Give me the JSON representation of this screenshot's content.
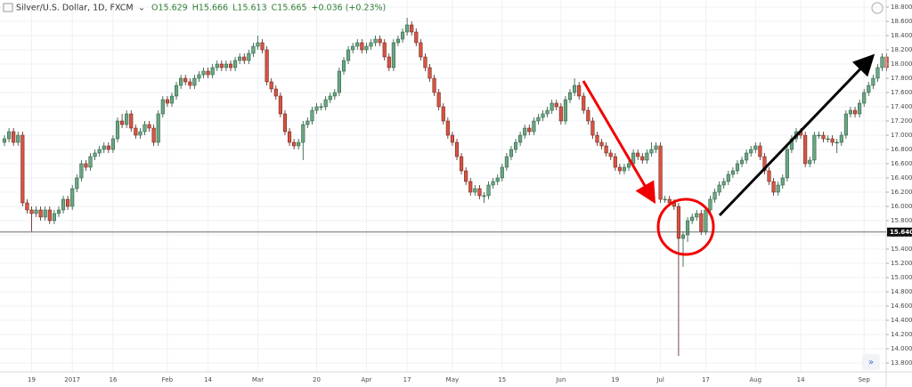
{
  "chart_data": {
    "type": "candlestick",
    "header": {
      "symbol": "Silver/U.S. Dollar, 1D, FXCM",
      "ohlc": [
        "O15.629",
        "H15.666",
        "L15.613",
        "C15.665",
        "+0.036 (+0.23%)"
      ]
    },
    "categories": [
      null,
      null,
      null,
      null,
      null,
      null,
      "19",
      null,
      null,
      null,
      null,
      null,
      null,
      null,
      null,
      "2017",
      null,
      null,
      null,
      null,
      null,
      null,
      null,
      null,
      "16",
      null,
      null,
      null,
      null,
      null,
      null,
      null,
      null,
      null,
      null,
      null,
      "Feb",
      null,
      null,
      null,
      null,
      null,
      null,
      null,
      null,
      "14",
      null,
      null,
      null,
      null,
      null,
      null,
      null,
      null,
      null,
      null,
      "Mar",
      null,
      null,
      null,
      null,
      null,
      null,
      null,
      null,
      null,
      null,
      null,
      null,
      "20",
      null,
      null,
      null,
      null,
      null,
      null,
      null,
      null,
      null,
      null,
      "Apr",
      null,
      null,
      null,
      null,
      null,
      null,
      null,
      null,
      "17",
      null,
      null,
      null,
      null,
      null,
      null,
      null,
      null,
      null,
      "May",
      null,
      null,
      null,
      null,
      null,
      null,
      null,
      null,
      null,
      null,
      "15",
      null,
      null,
      null,
      null,
      null,
      null,
      null,
      null,
      null,
      null,
      null,
      null,
      "Jun",
      null,
      null,
      null,
      null,
      null,
      null,
      null,
      null,
      null,
      null,
      null,
      "19",
      null,
      null,
      null,
      null,
      null,
      null,
      null,
      null,
      null,
      "Jul",
      null,
      null,
      null,
      null,
      null,
      null,
      null,
      null,
      null,
      "17",
      null,
      null,
      null,
      null,
      null,
      null,
      null,
      null,
      null,
      null,
      "Aug",
      null,
      null,
      null,
      null,
      null,
      null,
      null,
      null,
      null,
      "14",
      null,
      null,
      null,
      null,
      null,
      null,
      null,
      null,
      null,
      null,
      null,
      null,
      null,
      "Sep",
      null,
      null,
      null,
      null,
      null
    ],
    "open": [
      16.9,
      16.95,
      17.05,
      16.9,
      17.0,
      16.05,
      15.95,
      15.9,
      15.95,
      15.85,
      15.95,
      15.8,
      15.9,
      15.95,
      16.1,
      16.0,
      16.25,
      16.4,
      16.6,
      16.55,
      16.7,
      16.75,
      16.8,
      16.85,
      16.8,
      16.95,
      17.2,
      17.15,
      17.3,
      17.1,
      17.0,
      17.05,
      17.15,
      17.1,
      16.9,
      17.3,
      17.5,
      17.45,
      17.55,
      17.7,
      17.8,
      17.75,
      17.7,
      17.8,
      17.85,
      17.9,
      17.85,
      17.95,
      18.0,
      17.95,
      18.0,
      17.95,
      18.05,
      18.1,
      18.05,
      18.15,
      18.25,
      18.3,
      18.2,
      17.75,
      17.65,
      17.55,
      17.3,
      17.05,
      16.9,
      16.85,
      16.9,
      17.15,
      17.2,
      17.35,
      17.4,
      17.4,
      17.5,
      17.55,
      17.6,
      17.9,
      18.05,
      18.2,
      18.25,
      18.3,
      18.2,
      18.25,
      18.3,
      18.35,
      18.3,
      18.1,
      17.95,
      18.3,
      18.35,
      18.45,
      18.55,
      18.45,
      18.3,
      18.1,
      17.95,
      17.8,
      17.6,
      17.4,
      17.2,
      17.0,
      16.9,
      16.7,
      16.5,
      16.35,
      16.2,
      16.25,
      16.15,
      16.15,
      16.3,
      16.35,
      16.4,
      16.55,
      16.7,
      16.8,
      16.9,
      17.0,
      17.1,
      17.05,
      17.2,
      17.25,
      17.3,
      17.35,
      17.45,
      17.4,
      17.2,
      17.5,
      17.6,
      17.7,
      17.55,
      17.35,
      17.2,
      17.0,
      16.9,
      16.85,
      16.75,
      16.7,
      16.55,
      16.5,
      16.55,
      16.6,
      16.75,
      16.7,
      16.65,
      16.75,
      16.8,
      16.85,
      16.1,
      16.1,
      16.05,
      16.0,
      15.55,
      15.6,
      15.8,
      15.85,
      15.9,
      15.65,
      15.95,
      16.1,
      16.2,
      16.3,
      16.35,
      16.45,
      16.5,
      16.6,
      16.65,
      16.75,
      16.8,
      16.85,
      16.7,
      16.5,
      16.35,
      16.2,
      16.3,
      16.4,
      16.8,
      16.95,
      17.05,
      17.0,
      16.6,
      16.65,
      17.0,
      17.0,
      16.95,
      16.95,
      16.9,
      16.9,
      17.0,
      17.3,
      17.35,
      17.3,
      17.45,
      17.6,
      17.7,
      17.8,
      17.95,
      18.1
    ],
    "high": [
      17.0,
      17.1,
      17.1,
      17.05,
      17.05,
      16.1,
      16.0,
      16.0,
      16.0,
      16.0,
      16.0,
      15.95,
      16.0,
      16.15,
      16.15,
      16.3,
      16.45,
      16.65,
      16.65,
      16.75,
      16.8,
      16.85,
      16.9,
      16.9,
      17.0,
      17.25,
      17.3,
      17.35,
      17.35,
      17.15,
      17.1,
      17.2,
      17.2,
      17.15,
      17.35,
      17.55,
      17.55,
      17.6,
      17.75,
      17.85,
      17.85,
      17.8,
      17.85,
      17.9,
      17.95,
      17.95,
      18.0,
      18.05,
      18.05,
      18.05,
      18.05,
      18.1,
      18.15,
      18.15,
      18.2,
      18.3,
      18.4,
      18.35,
      18.25,
      17.8,
      17.7,
      17.6,
      17.35,
      17.1,
      16.95,
      16.95,
      17.2,
      17.25,
      17.4,
      17.45,
      17.45,
      17.55,
      17.6,
      17.65,
      17.95,
      18.1,
      18.25,
      18.3,
      18.35,
      18.35,
      18.3,
      18.35,
      18.4,
      18.4,
      18.35,
      18.15,
      18.35,
      18.4,
      18.5,
      18.65,
      18.6,
      18.5,
      18.35,
      18.15,
      18.0,
      17.85,
      17.65,
      17.45,
      17.25,
      17.05,
      16.95,
      16.75,
      16.55,
      16.4,
      16.3,
      16.3,
      16.2,
      16.35,
      16.4,
      16.45,
      16.6,
      16.75,
      16.85,
      16.95,
      17.05,
      17.15,
      17.15,
      17.25,
      17.3,
      17.35,
      17.4,
      17.5,
      17.5,
      17.45,
      17.55,
      17.65,
      17.8,
      17.75,
      17.6,
      17.4,
      17.25,
      17.05,
      16.95,
      16.9,
      16.8,
      16.75,
      16.6,
      16.6,
      16.65,
      16.8,
      16.8,
      16.75,
      16.8,
      16.9,
      16.9,
      16.9,
      16.15,
      16.15,
      16.1,
      16.05,
      15.65,
      15.85,
      15.9,
      15.95,
      15.95,
      16.0,
      16.15,
      16.25,
      16.35,
      16.4,
      16.5,
      16.55,
      16.65,
      16.7,
      16.8,
      16.85,
      16.9,
      16.9,
      16.75,
      16.55,
      16.4,
      16.35,
      16.45,
      16.85,
      17.0,
      17.1,
      17.1,
      17.05,
      16.7,
      17.05,
      17.05,
      17.05,
      17.0,
      17.0,
      16.95,
      17.05,
      17.35,
      17.4,
      17.4,
      17.5,
      17.65,
      17.75,
      17.85,
      18.0,
      18.15,
      18.15
    ],
    "low": [
      16.85,
      16.9,
      16.85,
      16.85,
      16.0,
      15.9,
      15.65,
      15.85,
      15.8,
      15.8,
      15.75,
      15.75,
      15.85,
      15.9,
      15.95,
      15.95,
      16.2,
      16.35,
      16.5,
      16.5,
      16.65,
      16.7,
      16.75,
      16.75,
      16.75,
      16.9,
      17.1,
      17.1,
      17.05,
      16.95,
      16.95,
      17.0,
      17.05,
      16.85,
      16.85,
      17.25,
      17.4,
      17.4,
      17.5,
      17.65,
      17.7,
      17.65,
      17.65,
      17.75,
      17.8,
      17.8,
      17.8,
      17.9,
      17.9,
      17.9,
      17.9,
      17.9,
      18.0,
      18.0,
      18.0,
      18.1,
      18.2,
      18.15,
      17.7,
      17.6,
      17.5,
      17.25,
      17.0,
      16.85,
      16.8,
      16.8,
      16.65,
      17.1,
      17.15,
      17.3,
      17.35,
      17.35,
      17.45,
      17.5,
      17.55,
      17.85,
      18.0,
      18.15,
      18.2,
      18.15,
      18.15,
      18.2,
      18.25,
      18.25,
      18.05,
      17.9,
      17.9,
      18.25,
      18.3,
      18.4,
      18.4,
      18.25,
      18.05,
      17.9,
      17.75,
      17.55,
      17.35,
      17.15,
      16.95,
      16.85,
      16.65,
      16.45,
      16.3,
      16.15,
      16.15,
      16.1,
      16.05,
      16.1,
      16.25,
      16.3,
      16.35,
      16.5,
      16.65,
      16.75,
      16.85,
      16.95,
      17.0,
      17.0,
      17.15,
      17.2,
      17.25,
      17.3,
      17.35,
      17.15,
      17.15,
      17.45,
      17.55,
      17.5,
      17.3,
      17.15,
      16.95,
      16.85,
      16.8,
      16.7,
      16.65,
      16.5,
      16.45,
      16.45,
      16.5,
      16.55,
      16.65,
      16.6,
      16.6,
      16.7,
      16.75,
      16.05,
      16.05,
      16.0,
      15.95,
      13.9,
      15.15,
      15.5,
      15.75,
      15.8,
      15.6,
      15.6,
      15.9,
      16.05,
      16.15,
      16.25,
      16.3,
      16.4,
      16.45,
      16.55,
      16.6,
      16.7,
      16.75,
      16.65,
      16.45,
      16.3,
      16.15,
      16.15,
      16.25,
      16.35,
      16.75,
      16.9,
      16.95,
      16.55,
      16.55,
      16.6,
      16.95,
      16.9,
      16.9,
      16.85,
      16.75,
      16.85,
      16.95,
      17.25,
      17.25,
      17.25,
      17.4,
      17.55,
      17.65,
      17.75,
      17.9,
      17.9
    ],
    "close": [
      16.95,
      17.05,
      16.9,
      17.0,
      16.05,
      15.95,
      15.9,
      15.95,
      15.85,
      15.95,
      15.8,
      15.9,
      15.95,
      16.1,
      16.0,
      16.25,
      16.4,
      16.6,
      16.55,
      16.7,
      16.75,
      16.8,
      16.85,
      16.8,
      16.95,
      17.2,
      17.15,
      17.3,
      17.1,
      17.0,
      17.05,
      17.15,
      17.1,
      16.9,
      17.3,
      17.5,
      17.45,
      17.55,
      17.7,
      17.8,
      17.75,
      17.7,
      17.8,
      17.85,
      17.9,
      17.85,
      17.95,
      18.0,
      17.95,
      18.0,
      17.95,
      18.05,
      18.1,
      18.05,
      18.15,
      18.25,
      18.3,
      18.2,
      17.75,
      17.65,
      17.55,
      17.3,
      17.05,
      16.9,
      16.85,
      16.9,
      17.15,
      17.2,
      17.35,
      17.4,
      17.4,
      17.5,
      17.55,
      17.6,
      17.9,
      18.05,
      18.2,
      18.25,
      18.3,
      18.2,
      18.25,
      18.3,
      18.35,
      18.3,
      18.1,
      17.95,
      18.3,
      18.35,
      18.45,
      18.55,
      18.45,
      18.3,
      18.1,
      17.95,
      17.8,
      17.6,
      17.4,
      17.2,
      17.0,
      16.9,
      16.7,
      16.5,
      16.35,
      16.2,
      16.25,
      16.15,
      16.15,
      16.3,
      16.35,
      16.4,
      16.55,
      16.7,
      16.8,
      16.9,
      17.0,
      17.1,
      17.05,
      17.2,
      17.25,
      17.3,
      17.35,
      17.45,
      17.4,
      17.2,
      17.5,
      17.6,
      17.7,
      17.55,
      17.35,
      17.2,
      17.0,
      16.9,
      16.85,
      16.75,
      16.7,
      16.55,
      16.5,
      16.55,
      16.6,
      16.75,
      16.7,
      16.65,
      16.75,
      16.8,
      16.85,
      16.1,
      16.1,
      16.05,
      16.0,
      15.55,
      15.6,
      15.8,
      15.85,
      15.9,
      15.65,
      15.95,
      16.1,
      16.2,
      16.3,
      16.35,
      16.45,
      16.5,
      16.6,
      16.65,
      16.75,
      16.8,
      16.85,
      16.7,
      16.5,
      16.35,
      16.2,
      16.3,
      16.4,
      16.8,
      16.95,
      17.05,
      17.0,
      16.6,
      16.65,
      17.0,
      17.0,
      16.95,
      16.95,
      16.9,
      16.9,
      17.0,
      17.3,
      17.35,
      17.3,
      17.45,
      17.6,
      17.7,
      17.8,
      17.95,
      18.1,
      17.95
    ],
    "up_color": "#6ba583",
    "down_color": "#d75442",
    "ylim": [
      13.675,
      18.9
    ],
    "yticks": [
      {
        "value": 13.8,
        "label": "13.800"
      },
      {
        "value": 14.0,
        "label": "14.000"
      },
      {
        "value": 14.2,
        "label": "14.200"
      },
      {
        "value": 14.4,
        "label": "14.400"
      },
      {
        "value": 14.6,
        "label": "14.600"
      },
      {
        "value": 14.8,
        "label": "14.800"
      },
      {
        "value": 15.0,
        "label": "15.000"
      },
      {
        "value": 15.2,
        "label": "15.200"
      },
      {
        "value": 15.4,
        "label": "15.400"
      },
      {
        "value": 15.6,
        "label": "15.600"
      },
      {
        "value": 15.8,
        "label": "15.800"
      },
      {
        "value": 16.0,
        "label": "16.000"
      },
      {
        "value": 16.2,
        "label": "16.200"
      },
      {
        "value": 16.4,
        "label": "16.400"
      },
      {
        "value": 16.6,
        "label": "16.600"
      },
      {
        "value": 16.8,
        "label": "16.800"
      },
      {
        "value": 17.0,
        "label": "17.000"
      },
      {
        "value": 17.2,
        "label": "17.200"
      },
      {
        "value": 17.4,
        "label": "17.400"
      },
      {
        "value": 17.6,
        "label": "17.600"
      },
      {
        "value": 17.8,
        "label": "17.800"
      },
      {
        "value": 18.0,
        "label": "18.000"
      },
      {
        "value": 18.2,
        "label": "18.200"
      },
      {
        "value": 18.4,
        "label": "18.400"
      },
      {
        "value": 18.6,
        "label": "18.600"
      },
      {
        "value": 18.8,
        "label": "18.800"
      }
    ],
    "price_line": {
      "value": 15.64,
      "label": "15.640"
    },
    "grid": true
  }
}
